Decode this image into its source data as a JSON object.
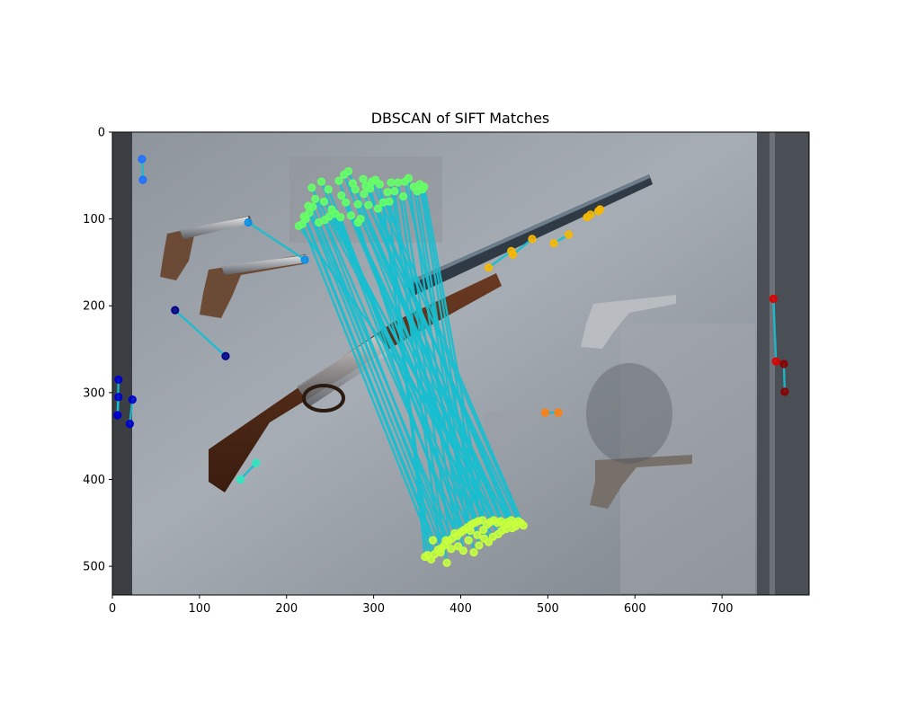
{
  "chart_data": {
    "type": "scatter",
    "title": "DBSCAN of SIFT Matches",
    "xlabel": "",
    "ylabel": "",
    "xlim": [
      0,
      800
    ],
    "ylim": [
      533,
      0
    ],
    "x_ticks": [
      0,
      100,
      200,
      300,
      400,
      500,
      600,
      700
    ],
    "y_ticks": [
      0,
      100,
      200,
      300,
      400,
      500
    ],
    "grid": false,
    "background": "photograph: museum wall display case with an engraved lever-action rifle, a long-barrel shotgun and several antique revolvers",
    "line_color": "#17becf",
    "clusters": [
      {
        "color": "#1f6fff",
        "pairs": [
          [
            [
              34,
              31
            ],
            [
              35,
              55
            ]
          ]
        ]
      },
      {
        "color": "#0000cc",
        "pairs": [
          [
            [
              7,
              285
            ],
            [
              6,
              326
            ]
          ],
          [
            [
              7,
              305
            ],
            [
              6,
              326
            ]
          ],
          [
            [
              23,
              308
            ],
            [
              20,
              336
            ]
          ]
        ]
      },
      {
        "color": "#000088",
        "pairs": [
          [
            [
              72,
              205
            ],
            [
              130,
              258
            ]
          ]
        ]
      },
      {
        "color": "#0a8fe8",
        "pairs": [
          [
            [
              156,
              104
            ],
            [
              221,
              147
            ]
          ]
        ]
      },
      {
        "color": "#2ee8c0",
        "pairs": [
          [
            [
              147,
              400
            ],
            [
              165,
              381
            ]
          ]
        ]
      },
      {
        "color": "#f7b800",
        "pairs": [
          [
            [
              432,
              156
            ],
            [
              458,
              137
            ]
          ],
          [
            [
              460,
              141
            ],
            [
              482,
              123
            ]
          ],
          [
            [
              507,
              128
            ],
            [
              524,
              118
            ]
          ],
          [
            [
              545,
              98
            ],
            [
              560,
              89
            ]
          ],
          [
            [
              549,
              95
            ],
            [
              558,
              91
            ]
          ]
        ]
      },
      {
        "color": "#ff7f0e",
        "pairs": [
          [
            [
              497,
              323
            ],
            [
              512,
              323
            ]
          ]
        ]
      },
      {
        "color": "#dd0000",
        "pairs": [
          [
            [
              759,
              192
            ],
            [
              762,
              264
            ]
          ]
        ]
      },
      {
        "color": "#880000",
        "pairs": [
          [
            [
              771,
              267
            ],
            [
              772,
              299
            ]
          ]
        ]
      },
      {
        "color_src": "#66ff66",
        "color_dst": "#c8ff3c",
        "pairs": [
          [
            [
              218,
              106
            ],
            [
              370,
              486
            ]
          ],
          [
            [
              222,
              100
            ],
            [
              374,
              481
            ]
          ],
          [
            [
              226,
              93
            ],
            [
              378,
              479
            ]
          ],
          [
            [
              230,
              86
            ],
            [
              381,
              476
            ]
          ],
          [
            [
              233,
              77
            ],
            [
              386,
              471
            ]
          ],
          [
            [
              237,
              104
            ],
            [
              390,
              468
            ]
          ],
          [
            [
              240,
              57
            ],
            [
              396,
              465
            ]
          ],
          [
            [
              244,
              101
            ],
            [
              400,
              461
            ]
          ],
          [
            [
              248,
              66
            ],
            [
              404,
              458
            ]
          ],
          [
            [
              252,
              89
            ],
            [
              408,
              455
            ]
          ],
          [
            [
              256,
              94
            ],
            [
              412,
              452
            ]
          ],
          [
            [
              260,
              56
            ],
            [
              416,
              450
            ]
          ],
          [
            [
              263,
              73
            ],
            [
              420,
              448
            ]
          ],
          [
            [
              266,
              49
            ],
            [
              425,
              447
            ]
          ],
          [
            [
              268,
              81
            ],
            [
              430,
              452
            ]
          ],
          [
            [
              271,
              45
            ],
            [
              434,
              449
            ]
          ],
          [
            [
              274,
              96
            ],
            [
              438,
              447
            ]
          ],
          [
            [
              276,
              59
            ],
            [
              442,
              450
            ]
          ],
          [
            [
              279,
              66
            ],
            [
              446,
              448
            ]
          ],
          [
            [
              282,
              83
            ],
            [
              450,
              452
            ]
          ],
          [
            [
              285,
              100
            ],
            [
              454,
              449
            ]
          ],
          [
            [
              288,
              54
            ],
            [
              458,
              447
            ]
          ],
          [
            [
              291,
              62
            ],
            [
              462,
              451
            ]
          ],
          [
            [
              294,
              84
            ],
            [
              466,
              448
            ]
          ],
          [
            [
              298,
              57
            ],
            [
              469,
              450
            ]
          ],
          [
            [
              302,
              55
            ],
            [
              472,
              453
            ]
          ],
          [
            [
              307,
              60
            ],
            [
              366,
              492
            ]
          ],
          [
            [
              311,
              81
            ],
            [
              362,
              487
            ]
          ],
          [
            [
              316,
              69
            ],
            [
              359,
              489
            ]
          ],
          [
            [
              320,
              58
            ],
            [
              377,
              484
            ]
          ],
          [
            [
              324,
              68
            ],
            [
              384,
              496
            ]
          ],
          [
            [
              328,
              58
            ],
            [
              389,
              480
            ]
          ],
          [
            [
              334,
              74
            ],
            [
              397,
              477
            ]
          ],
          [
            [
              340,
              53
            ],
            [
              403,
              482
            ]
          ],
          [
            [
              346,
              63
            ],
            [
              409,
              470
            ]
          ],
          [
            [
              350,
              68
            ],
            [
              415,
              484
            ]
          ],
          [
            [
              353,
              60
            ],
            [
              421,
              476
            ]
          ],
          [
            [
              356,
              66
            ],
            [
              427,
              468
            ]
          ],
          [
            [
              358,
              63
            ],
            [
              432,
              472
            ]
          ],
          [
            [
              229,
              64
            ],
            [
              437,
              466
            ]
          ],
          [
            [
              243,
              80
            ],
            [
              443,
              463
            ]
          ],
          [
            [
              249,
              97
            ],
            [
              447,
              459
            ]
          ],
          [
            [
              289,
              71
            ],
            [
              452,
              457
            ]
          ],
          [
            [
              305,
              88
            ],
            [
              459,
              456
            ]
          ],
          [
            [
              214,
              108
            ],
            [
              463,
              454
            ]
          ],
          [
            [
              220,
              97
            ],
            [
              368,
              470
            ]
          ],
          [
            [
              225,
              85
            ],
            [
              383,
              470
            ]
          ],
          [
            [
              262,
              98
            ],
            [
              393,
              462
            ]
          ],
          [
            [
              282,
              104
            ],
            [
              401,
              460
            ]
          ],
          [
            [
              296,
              65
            ],
            [
              411,
              459
            ]
          ],
          [
            [
              318,
              80
            ],
            [
              419,
              464
            ]
          ],
          [
            [
              336,
              57
            ],
            [
              426,
              458
            ]
          ]
        ]
      }
    ]
  }
}
